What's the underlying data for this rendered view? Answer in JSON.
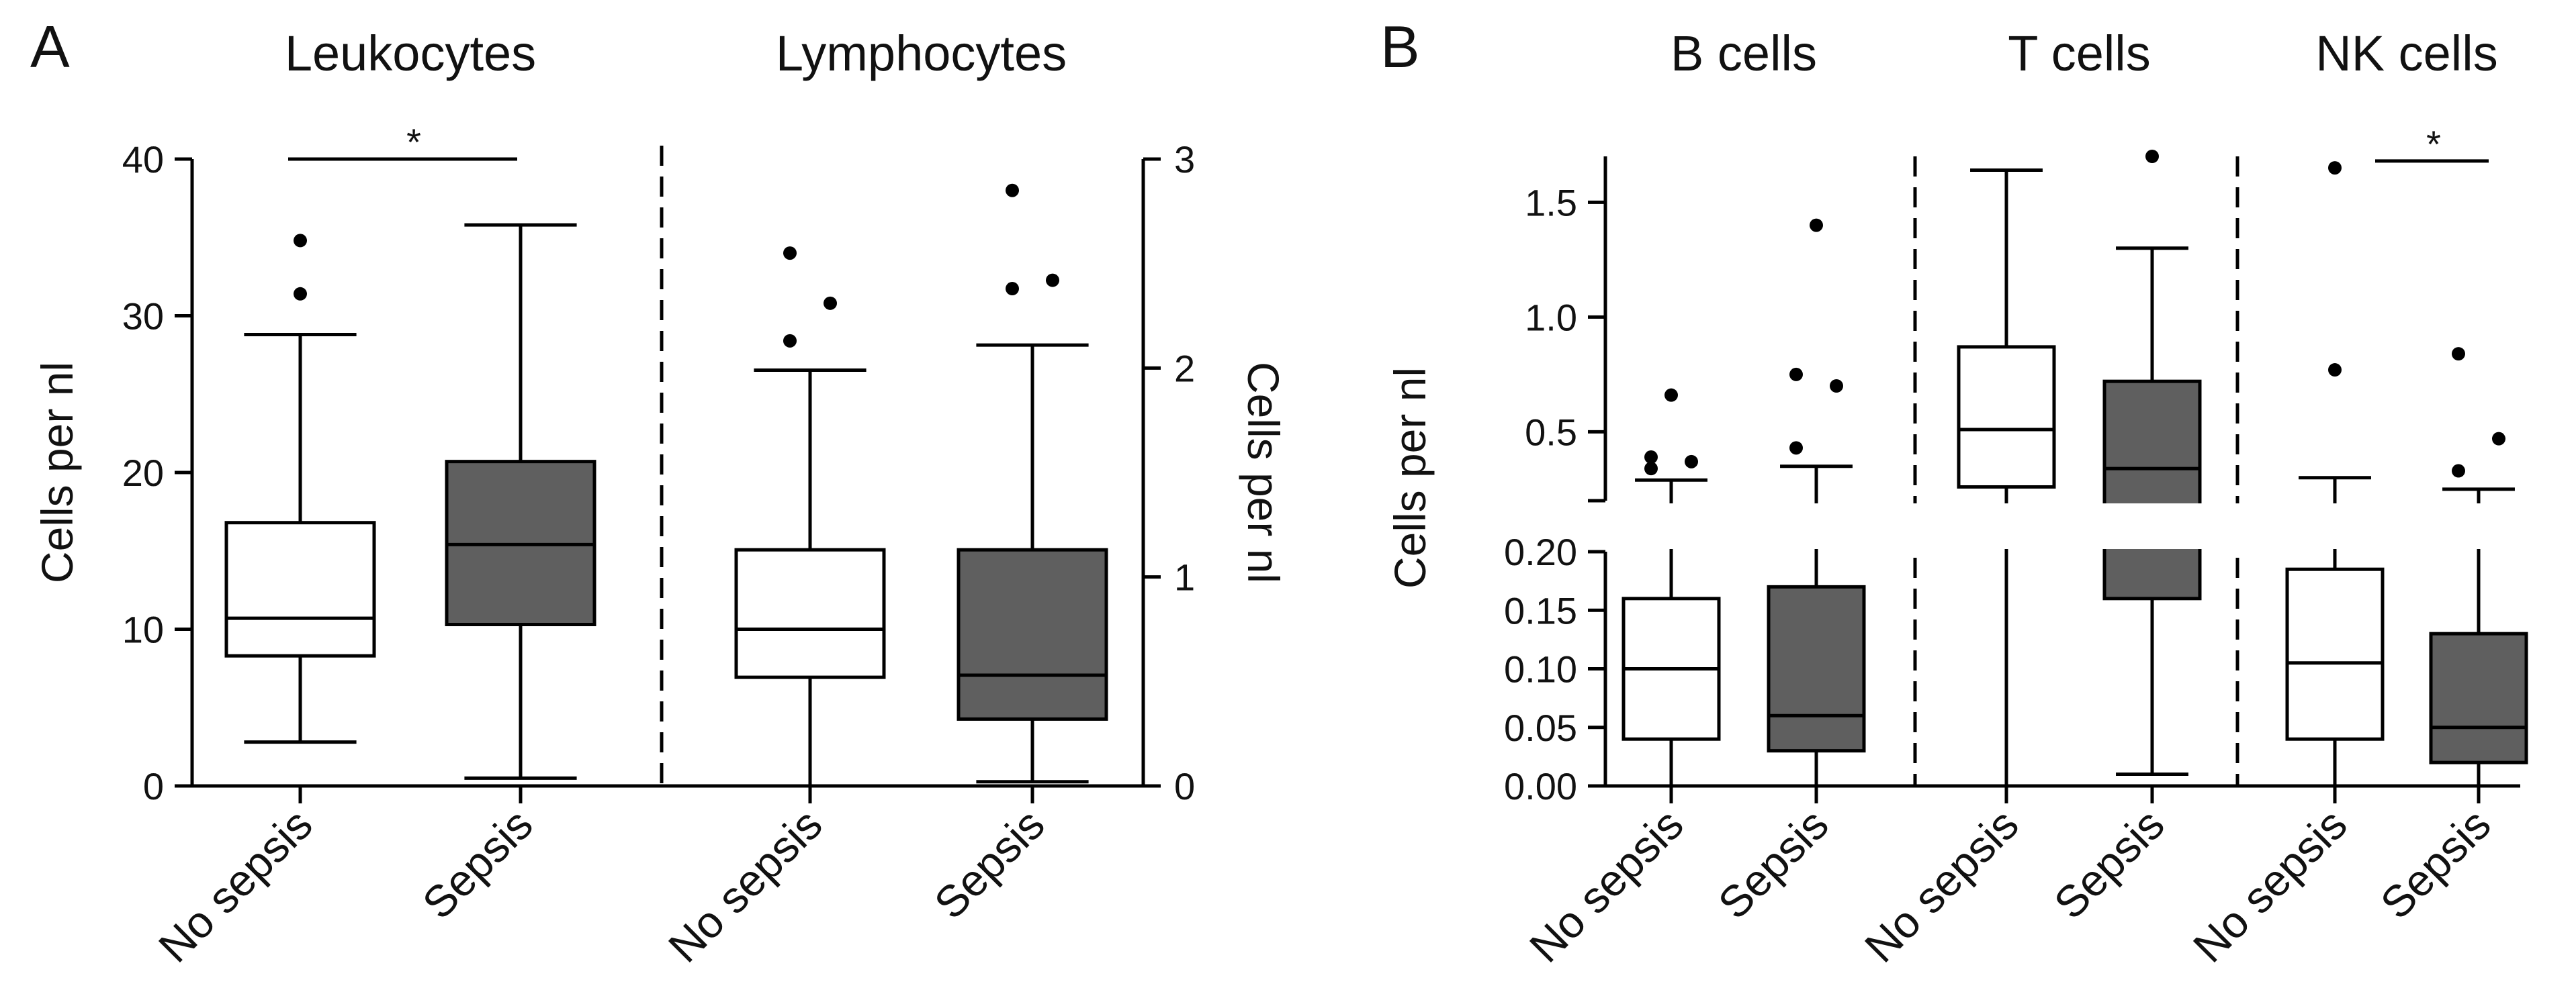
{
  "colors": {
    "no_sepsis": "#ffffff",
    "sepsis": "#5f5f5f",
    "outline": "#000000"
  },
  "chart_data": [
    {
      "panel": "A",
      "type": "box",
      "title": "Leukocytes",
      "ylabel": "Cells per nl",
      "y_axis_side": "left",
      "ylim": [
        0,
        40
      ],
      "yticks": [
        0,
        10,
        20,
        30,
        40
      ],
      "ytick_labels": [
        "0",
        "10",
        "20",
        "30",
        "40"
      ],
      "categories": [
        "No sepsis",
        "Sepsis"
      ],
      "series": [
        {
          "name": "No sepsis",
          "min": 2.8,
          "q1": 8.3,
          "median": 10.7,
          "q3": 16.8,
          "max": 28.8,
          "outliers": [
            31.4,
            34.8
          ]
        },
        {
          "name": "Sepsis",
          "min": 0.5,
          "q1": 10.3,
          "median": 15.4,
          "q3": 20.7,
          "max": 35.8,
          "outliers": []
        }
      ],
      "significance": {
        "label": "*",
        "between": [
          "No sepsis",
          "Sepsis"
        ],
        "y": 40
      }
    },
    {
      "panel": "A",
      "type": "box",
      "title": "Lymphocytes",
      "ylabel": "Cells per nl",
      "y_axis_side": "right",
      "ylim": [
        0,
        3
      ],
      "yticks": [
        0,
        1,
        2,
        3
      ],
      "ytick_labels": [
        "0",
        "1",
        "2",
        "3"
      ],
      "categories": [
        "No sepsis",
        "Sepsis"
      ],
      "series": [
        {
          "name": "No sepsis",
          "min": 0.0,
          "q1": 0.52,
          "median": 0.75,
          "q3": 1.13,
          "max": 1.99,
          "outliers": [
            2.13,
            2.31,
            2.55
          ]
        },
        {
          "name": "Sepsis",
          "min": 0.02,
          "q1": 0.32,
          "median": 0.53,
          "q3": 1.13,
          "max": 2.11,
          "outliers": [
            2.38,
            2.42,
            2.85
          ]
        }
      ]
    },
    {
      "panel": "B",
      "type": "box",
      "title": "B cells",
      "ylabel": "Cells per nl",
      "y_axis_side": "left",
      "broken_axis": {
        "lower": [
          0,
          0.2
        ],
        "upper": [
          0.2,
          1.7
        ]
      },
      "yticks_lower": [
        0.0,
        0.05,
        0.1,
        0.15,
        0.2
      ],
      "ytick_labels_lower": [
        "0.00",
        "0.05",
        "0.10",
        "0.15",
        "0.20"
      ],
      "yticks_upper": [
        0.5,
        1.0,
        1.5
      ],
      "ytick_labels_upper": [
        "0.5",
        "1.0",
        "1.5"
      ],
      "categories": [
        "No sepsis",
        "Sepsis"
      ],
      "series": [
        {
          "name": "No sepsis",
          "min": 0.0,
          "q1": 0.04,
          "median": 0.1,
          "q3": 0.16,
          "max": 0.29,
          "outliers": [
            0.34,
            0.37,
            0.39,
            0.66
          ]
        },
        {
          "name": "Sepsis",
          "min": 0.0,
          "q1": 0.03,
          "median": 0.06,
          "q3": 0.17,
          "max": 0.35,
          "outliers": [
            0.43,
            0.7,
            0.75,
            1.4
          ]
        }
      ]
    },
    {
      "panel": "B",
      "type": "box",
      "title": "T cells",
      "ylabel": "",
      "broken_axis": {
        "lower": [
          0,
          0.2
        ],
        "upper": [
          0.2,
          1.7
        ]
      },
      "categories": [
        "No sepsis",
        "Sepsis"
      ],
      "series": [
        {
          "name": "No sepsis",
          "min": 0.0,
          "q1": 0.26,
          "median": 0.51,
          "q3": 0.87,
          "max": 1.64,
          "outliers": []
        },
        {
          "name": "Sepsis",
          "min": 0.01,
          "q1": 0.16,
          "median": 0.34,
          "q3": 0.72,
          "max": 1.3,
          "outliers": [
            1.7
          ]
        }
      ]
    },
    {
      "panel": "B",
      "type": "box",
      "title": "NK cells",
      "ylabel": "",
      "broken_axis": {
        "lower": [
          0,
          0.2
        ],
        "upper": [
          0.2,
          1.7
        ]
      },
      "categories": [
        "No sepsis",
        "Sepsis"
      ],
      "series": [
        {
          "name": "No sepsis",
          "min": 0.0,
          "q1": 0.04,
          "median": 0.105,
          "q3": 0.185,
          "max": 0.3,
          "outliers": [
            0.77,
            1.65
          ]
        },
        {
          "name": "Sepsis",
          "min": 0.0,
          "q1": 0.02,
          "median": 0.05,
          "q3": 0.13,
          "max": 0.25,
          "outliers": [
            0.33,
            0.47,
            0.84
          ]
        }
      ],
      "significance": {
        "label": "*",
        "between": [
          "No sepsis",
          "Sepsis"
        ],
        "y": 1.68
      }
    }
  ],
  "panel_labels": [
    "A",
    "B"
  ]
}
